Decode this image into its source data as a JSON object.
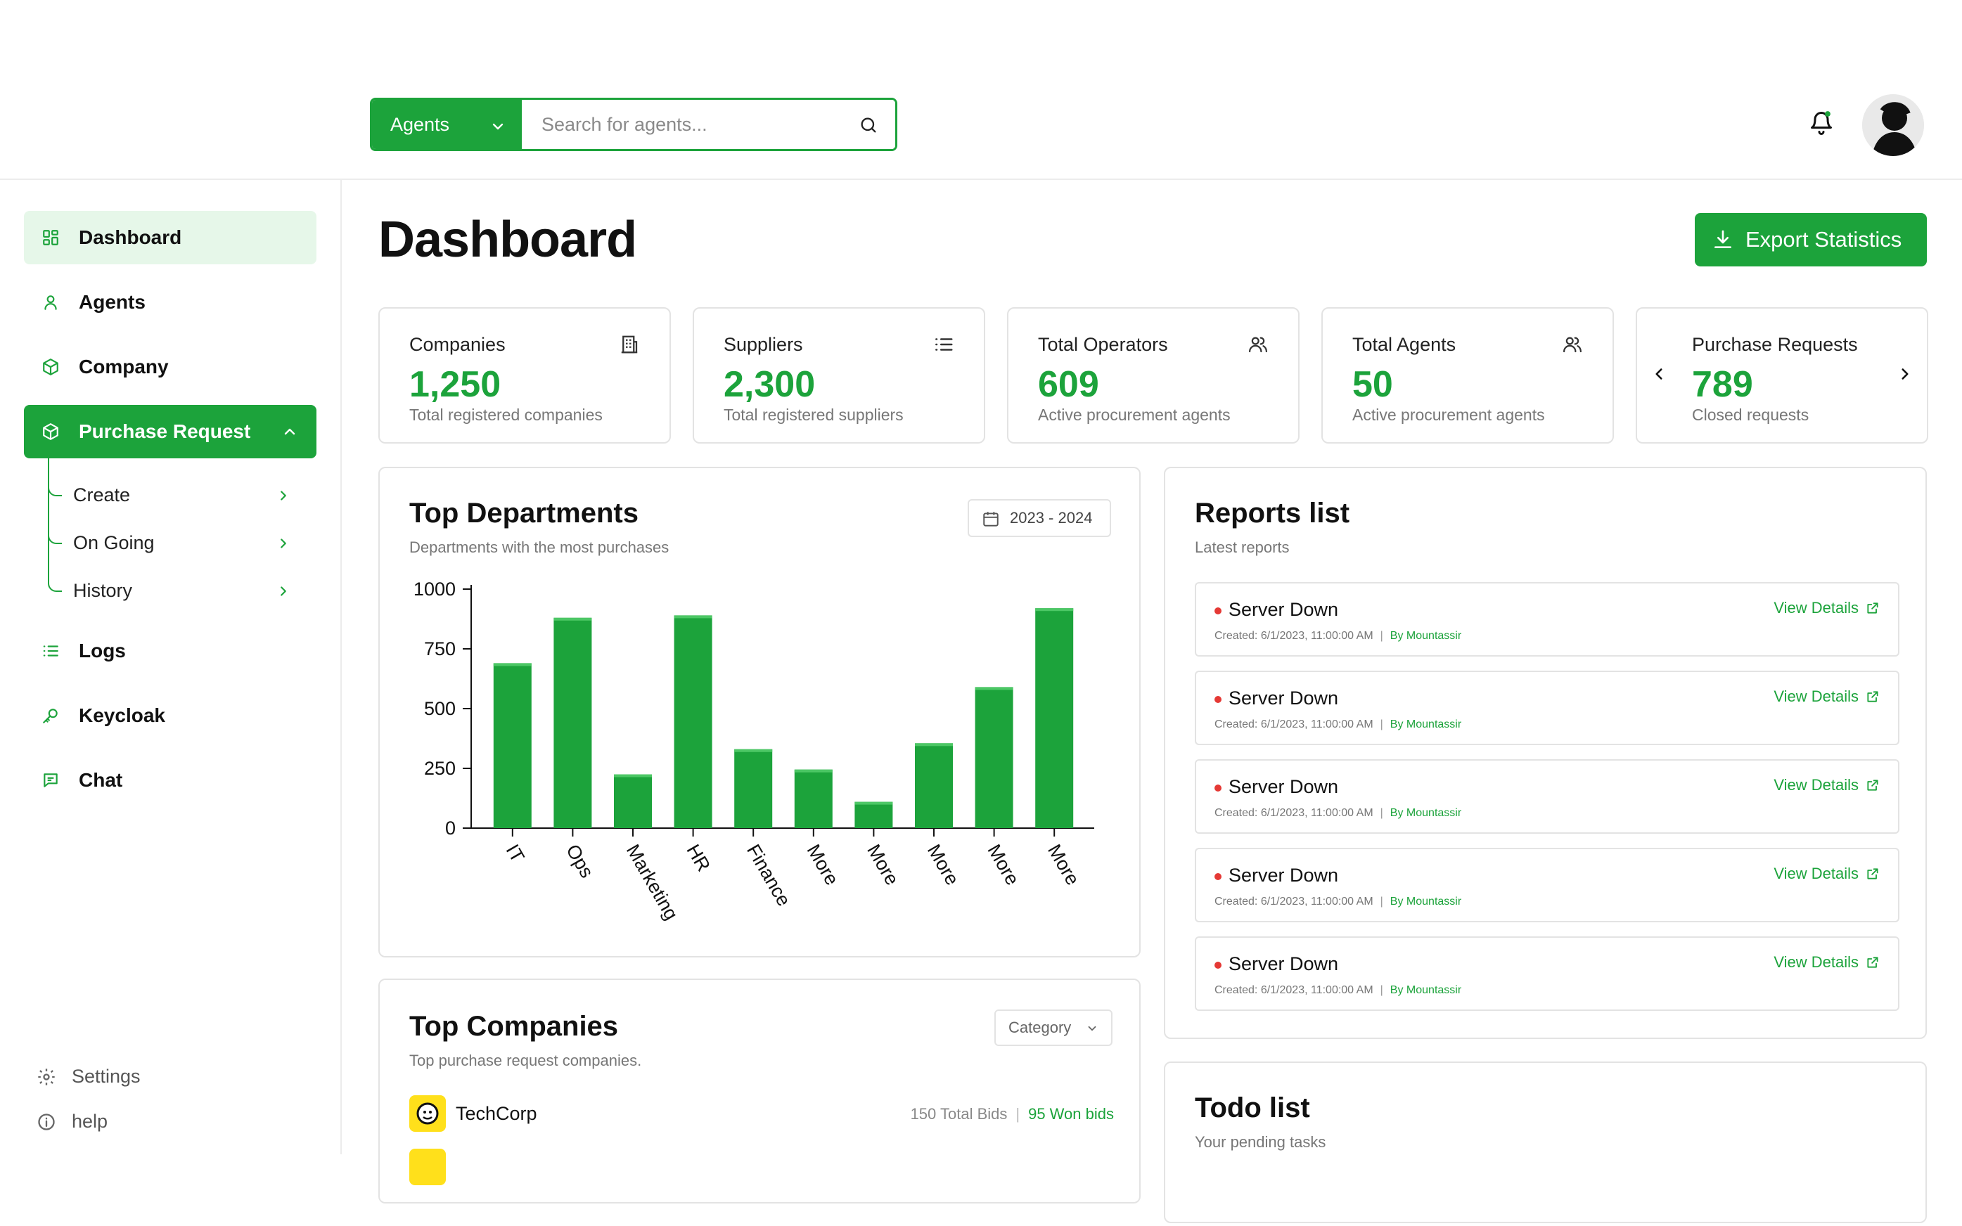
{
  "header": {
    "search": {
      "scope_label": "Agents",
      "placeholder": "Search for agents..."
    }
  },
  "sidebar": {
    "items": [
      {
        "label": "Dashboard",
        "icon": "grid-icon"
      },
      {
        "label": "Agents",
        "icon": "user-icon"
      },
      {
        "label": "Company",
        "icon": "cube-icon"
      },
      {
        "label": "Purchase Request",
        "icon": "cube-icon"
      },
      {
        "label": "Logs",
        "icon": "list-icon"
      },
      {
        "label": "Keycloak",
        "icon": "key-icon"
      },
      {
        "label": "Chat",
        "icon": "message-icon"
      }
    ],
    "purchase_subitems": [
      {
        "label": "Create"
      },
      {
        "label": "On Going"
      },
      {
        "label": "History"
      }
    ],
    "footer": {
      "settings": "Settings",
      "help": "help"
    }
  },
  "main": {
    "title": "Dashboard",
    "export_label": "Export Statistics",
    "stats": [
      {
        "label": "Companies",
        "value": "1,250",
        "sub": "Total registered companies",
        "icon": "building-icon"
      },
      {
        "label": "Suppliers",
        "value": "2,300",
        "sub": "Total registered suppliers",
        "icon": "list-icon"
      },
      {
        "label": "Total Operators",
        "value": "609",
        "sub": "Active procurement agents",
        "icon": "users-icon"
      },
      {
        "label": "Total Agents",
        "value": "50",
        "sub": "Active procurement agents",
        "icon": "users-icon"
      },
      {
        "label": "Purchase Requests",
        "value": "789",
        "sub": "Closed requests",
        "icon": "carousel-arrows"
      }
    ],
    "top_departments": {
      "title": "Top Departments",
      "subtitle": "Departments with the most purchases",
      "date_range": "2023 - 2024"
    },
    "top_companies": {
      "title": "Top Companies",
      "subtitle": "Top purchase request companies.",
      "filter_label": "Category",
      "rows": [
        {
          "name": "TechCorp",
          "total_bids": "150 Total Bids",
          "won_bids": "95 Won bids"
        }
      ]
    },
    "reports": {
      "title": "Reports list",
      "subtitle": "Latest reports",
      "view_label": "View Details",
      "items": [
        {
          "title": "Server Down",
          "created": "Created: 6/1/2023, 11:00:00 AM",
          "by": "By Mountassir"
        },
        {
          "title": "Server Down",
          "created": "Created: 6/1/2023, 11:00:00 AM",
          "by": "By Mountassir"
        },
        {
          "title": "Server Down",
          "created": "Created: 6/1/2023, 11:00:00 AM",
          "by": "By Mountassir"
        },
        {
          "title": "Server Down",
          "created": "Created: 6/1/2023, 11:00:00 AM",
          "by": "By Mountassir"
        },
        {
          "title": "Server Down",
          "created": "Created: 6/1/2023, 11:00:00 AM",
          "by": "By Mountassir"
        }
      ]
    },
    "todo": {
      "title": "Todo list",
      "subtitle": "Your pending tasks"
    }
  },
  "colors": {
    "accent": "#1ca33b",
    "accent_light": "#e6f7e9",
    "danger": "#e53935",
    "border": "#e3e3e3"
  },
  "chart_data": {
    "type": "bar",
    "title": "Top Departments",
    "categories": [
      "IT",
      "Ops",
      "Marketing",
      "HR",
      "Finance",
      "More",
      "More",
      "More",
      "More",
      "More"
    ],
    "values": [
      690,
      880,
      225,
      890,
      330,
      245,
      110,
      355,
      590,
      920
    ],
    "yticks": [
      0,
      250,
      500,
      750,
      1000
    ],
    "ylim": [
      0,
      1000
    ],
    "xlabel": "",
    "ylabel": "",
    "color": "#1ca33b"
  }
}
